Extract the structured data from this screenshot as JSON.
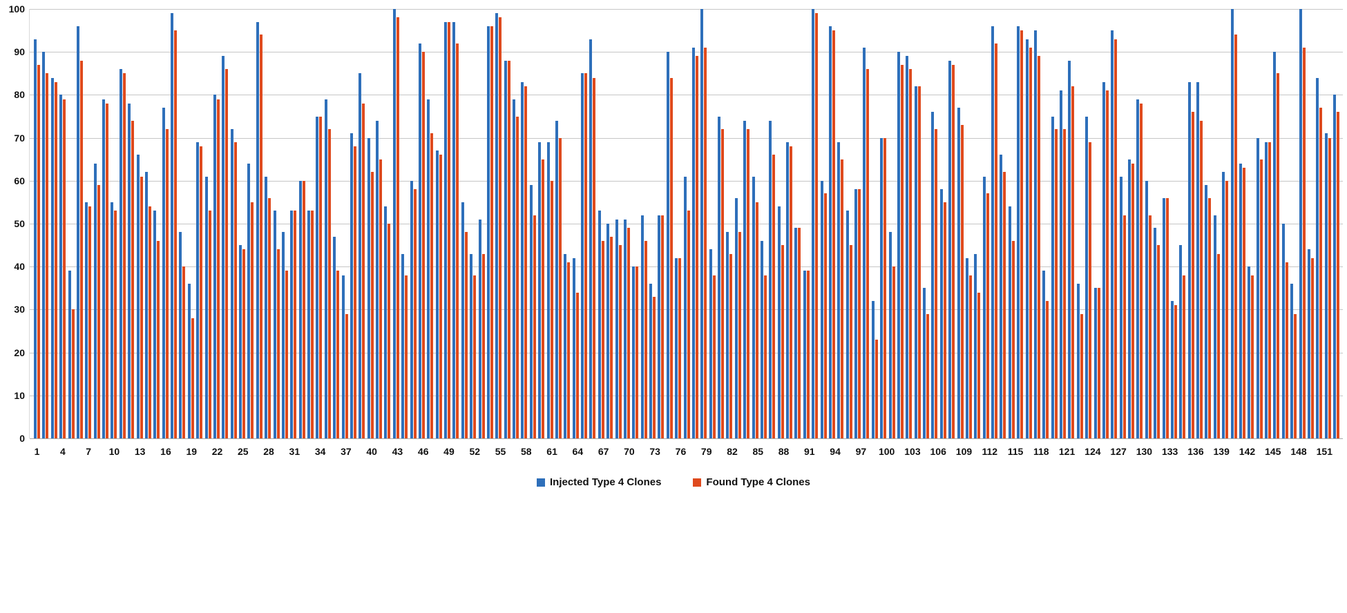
{
  "chart_data": {
    "type": "bar",
    "title": "",
    "xlabel": "",
    "ylabel": "",
    "ylim": [
      0,
      100
    ],
    "y_ticks": [
      0,
      10,
      20,
      30,
      40,
      50,
      60,
      70,
      80,
      90,
      100
    ],
    "grid": "horizontal",
    "legend_position": "bottom-center",
    "categories_count": 153,
    "x_tick_labels": [
      "1",
      "4",
      "7",
      "10",
      "13",
      "16",
      "19",
      "22",
      "25",
      "28",
      "31",
      "34",
      "37",
      "40",
      "43",
      "46",
      "49",
      "52",
      "55",
      "58",
      "61",
      "64",
      "67",
      "70",
      "73",
      "76",
      "79",
      "82",
      "85",
      "88",
      "91",
      "94",
      "97",
      "100",
      "103",
      "106",
      "109",
      "112",
      "115",
      "118",
      "121",
      "124",
      "127",
      "130",
      "133",
      "136",
      "139",
      "142",
      "145",
      "148",
      "151"
    ],
    "x_tick_step": 3,
    "series": [
      {
        "name": "Injected Type 4 Clones",
        "color": "#2e6fba",
        "values": [
          93,
          90,
          84,
          80,
          39,
          96,
          55,
          64,
          79,
          55,
          86,
          78,
          66,
          62,
          53,
          77,
          99,
          48,
          36,
          69,
          61,
          80,
          89,
          72,
          45,
          64,
          97,
          61,
          53,
          48,
          53,
          60,
          53,
          75,
          79,
          47,
          38,
          71,
          85,
          70,
          74,
          54,
          100,
          43,
          60,
          92,
          79,
          67,
          97,
          97,
          55,
          43,
          51,
          96,
          99,
          88,
          79,
          83,
          59,
          69,
          69,
          74,
          43,
          42,
          85,
          93,
          53,
          50,
          51,
          51,
          40,
          52,
          36,
          52,
          90,
          42,
          61,
          91,
          100,
          44,
          75,
          48,
          56,
          74,
          61,
          46,
          74,
          54,
          69,
          49,
          39,
          100,
          60,
          96,
          69,
          53,
          58,
          91,
          32,
          70,
          48,
          90,
          89,
          82,
          35,
          76,
          58,
          88,
          77,
          42,
          43,
          61,
          96,
          66,
          54,
          96,
          93,
          95,
          39,
          75,
          81,
          88,
          36,
          75,
          35,
          83,
          95,
          61,
          65,
          79,
          60,
          49,
          56,
          32,
          45,
          83,
          83,
          59,
          52,
          62,
          100,
          64,
          40,
          70,
          69,
          90,
          50,
          36,
          100,
          44,
          84,
          71,
          80
        ]
      },
      {
        "name": "Found Type 4 Clones",
        "color": "#df4a1d",
        "values": [
          87,
          85,
          83,
          79,
          30,
          88,
          54,
          59,
          78,
          53,
          85,
          74,
          61,
          54,
          46,
          72,
          95,
          40,
          28,
          68,
          53,
          79,
          86,
          69,
          44,
          55,
          94,
          56,
          44,
          39,
          53,
          60,
          53,
          75,
          72,
          39,
          29,
          68,
          78,
          62,
          65,
          50,
          98,
          38,
          58,
          90,
          71,
          66,
          97,
          92,
          48,
          38,
          43,
          96,
          98,
          88,
          75,
          82,
          52,
          65,
          60,
          70,
          41,
          34,
          85,
          84,
          46,
          47,
          45,
          49,
          40,
          46,
          33,
          52,
          84,
          42,
          53,
          89,
          91,
          38,
          72,
          43,
          48,
          72,
          55,
          38,
          66,
          45,
          68,
          49,
          39,
          99,
          57,
          95,
          65,
          45,
          58,
          86,
          23,
          70,
          40,
          87,
          86,
          82,
          29,
          72,
          55,
          87,
          73,
          38,
          34,
          57,
          92,
          62,
          46,
          95,
          91,
          89,
          32,
          72,
          72,
          82,
          29,
          69,
          35,
          81,
          93,
          52,
          64,
          78,
          52,
          45,
          56,
          31,
          38,
          76,
          74,
          56,
          43,
          60,
          94,
          63,
          38,
          65,
          69,
          85,
          41,
          29,
          91,
          42,
          77,
          70,
          76
        ]
      }
    ]
  },
  "legend": {
    "items": [
      {
        "label": "Injected Type 4 Clones",
        "color": "#2e6fba"
      },
      {
        "label": "Found Type 4 Clones",
        "color": "#df4a1d"
      }
    ]
  },
  "axis_colors": {
    "gridline": "#c6c6c6",
    "axis_line": "#a6a6a6",
    "tick_text": "#111111"
  }
}
